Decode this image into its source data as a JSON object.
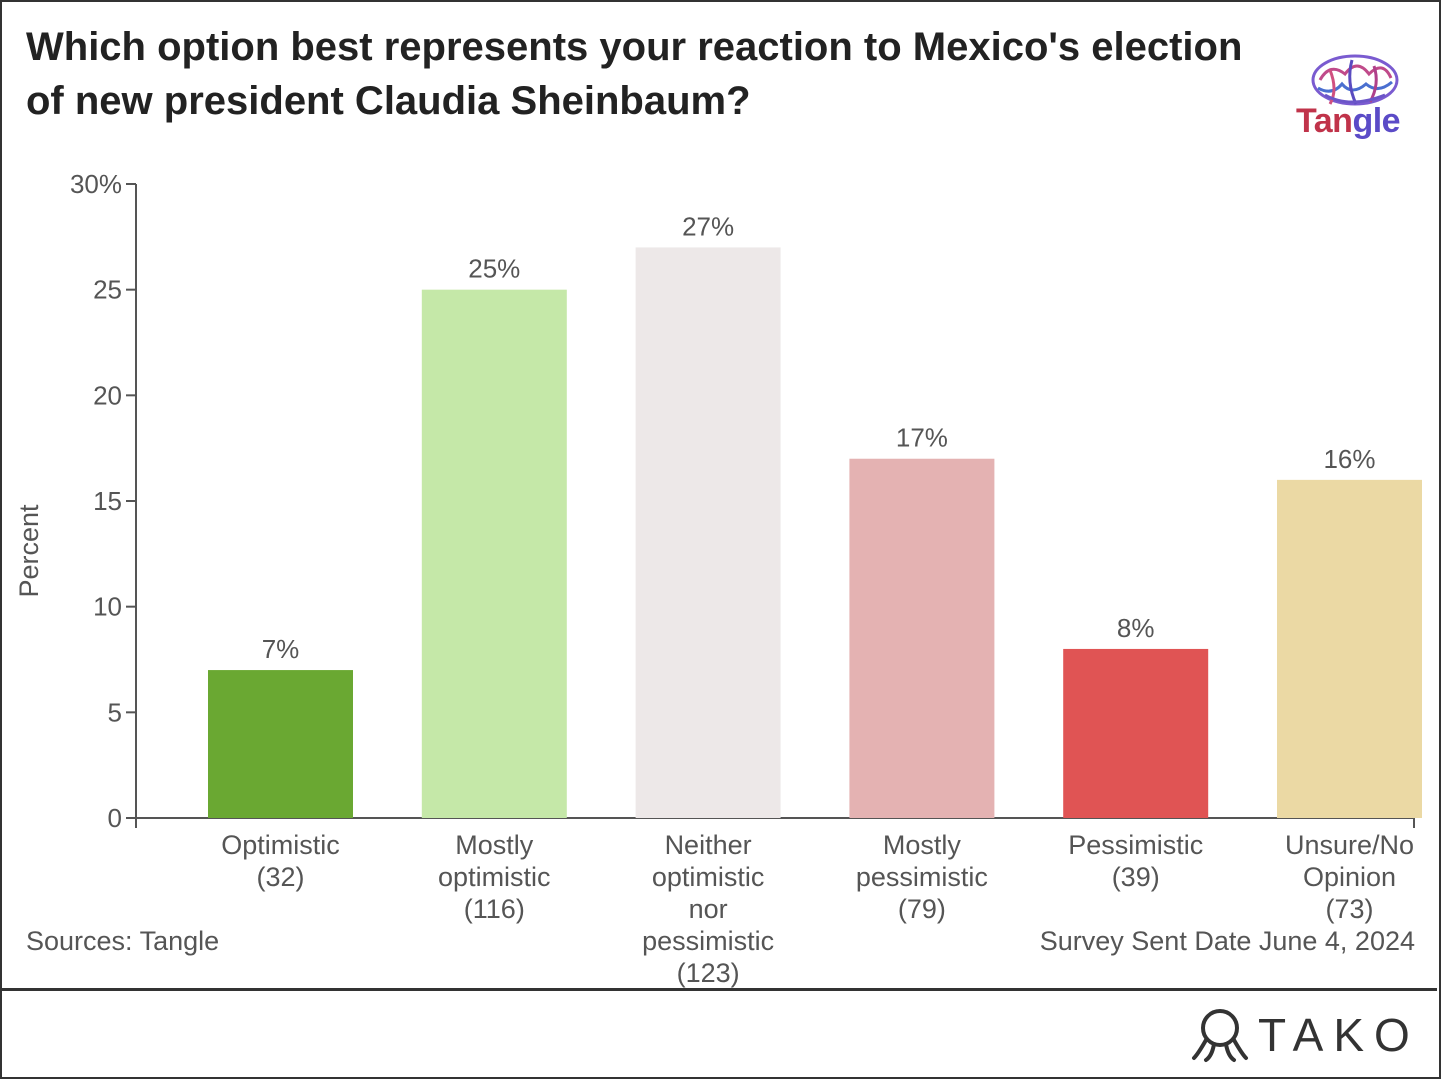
{
  "chart_data": {
    "type": "bar",
    "title": "Which option best represents your reaction to Mexico's election of new president Claudia Sheinbaum?",
    "ylabel": "Percent",
    "ylim": [
      0,
      30
    ],
    "yticks": [
      0,
      5,
      10,
      15,
      20,
      25,
      30
    ],
    "ytick_labels": [
      "0",
      "5",
      "10",
      "15",
      "20",
      "25",
      "30%"
    ],
    "categories": [
      [
        "Optimistic",
        "(32)"
      ],
      [
        "Mostly",
        "optimistic",
        "(116)"
      ],
      [
        "Neither",
        "optimistic",
        "nor",
        "pessimistic",
        "(123)"
      ],
      [
        "Mostly",
        "pessimistic",
        "(79)"
      ],
      [
        "Pessimistic",
        "(39)"
      ],
      [
        "Unsure/No",
        "Opinion",
        "(73)"
      ]
    ],
    "values": [
      7,
      25,
      27,
      17,
      8,
      16
    ],
    "value_labels": [
      "7%",
      "25%",
      "27%",
      "17%",
      "8%",
      "16%"
    ],
    "colors": [
      "#6aa832",
      "#c5e8a8",
      "#ede8e8",
      "#e4b2b2",
      "#e05454",
      "#ebd9a4"
    ]
  },
  "source": "Sources: Tangle",
  "survey_date": "Survey Sent Date June 4, 2024",
  "brand": {
    "name_part1": "Tan",
    "name_part2": "gle",
    "icon": "brain-icon"
  },
  "footer": {
    "logo_text": "TAKO",
    "logo_icon": "tako-octopus-icon"
  }
}
